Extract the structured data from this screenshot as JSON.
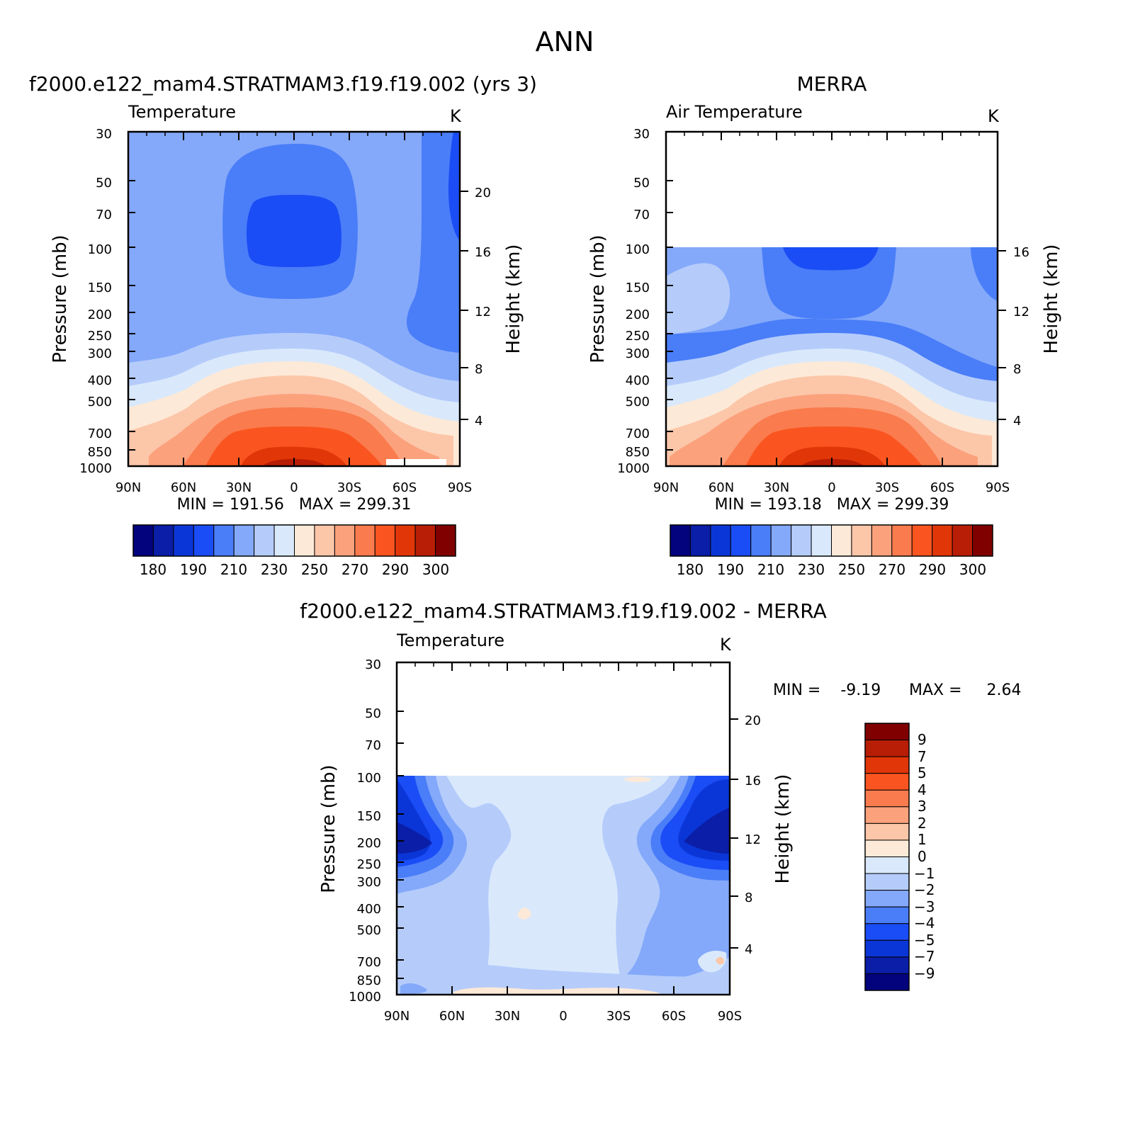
{
  "figure": {
    "title": "ANN"
  },
  "chart_data": [
    {
      "type": "heatmap",
      "title": "f2000.e122_mam4.STRATMAM3.f19.f19.002 (yrs 3)",
      "subtitle": "Temperature",
      "units": "K",
      "ylabel": "Pressure (mb)",
      "ylabel_right": "Height (km)",
      "x_ticks": [
        "90N",
        "60N",
        "30N",
        "0",
        "30S",
        "60S",
        "90S"
      ],
      "y_ticks": [
        "30",
        "50",
        "70",
        "100",
        "150",
        "200",
        "250",
        "300",
        "400",
        "500",
        "700",
        "850",
        "1000"
      ],
      "y_right_ticks": [
        "20",
        "16",
        "12",
        "8",
        "4"
      ],
      "xlim": [
        90,
        -90
      ],
      "ylim": [
        1000,
        30
      ],
      "y_scale": "log",
      "stats": "MIN = 191.56   MAX = 299.31",
      "colorbar_labels": [
        "180",
        "190",
        "210",
        "230",
        "250",
        "270",
        "290",
        "300"
      ],
      "levels": [
        175,
        180,
        185,
        190,
        200,
        210,
        220,
        230,
        240,
        250,
        260,
        270,
        280,
        290,
        295,
        300
      ],
      "colors": [
        "#03037d",
        "#0a1ea8",
        "#0b36d7",
        "#1a4df5",
        "#4a7df8",
        "#84a9fa",
        "#b5ccfb",
        "#d9e9fb",
        "#fde9d7",
        "#fcc6a9",
        "#fba17c",
        "#fa7b4d",
        "#fa5520",
        "#e13608",
        "#b81e05",
        "#800000"
      ]
    },
    {
      "type": "heatmap",
      "title": "MERRA",
      "subtitle": "Air Temperature",
      "units": "K",
      "ylabel": "Pressure (mb)",
      "ylabel_right": "Height (km)",
      "x_ticks": [
        "90N",
        "60N",
        "30N",
        "0",
        "30S",
        "60S",
        "90S"
      ],
      "y_ticks": [
        "30",
        "50",
        "70",
        "100",
        "150",
        "200",
        "250",
        "300",
        "400",
        "500",
        "700",
        "850",
        "1000"
      ],
      "y_right_ticks": [
        "16",
        "12",
        "8",
        "4"
      ],
      "xlim": [
        90,
        -90
      ],
      "ylim": [
        1000,
        30
      ],
      "data_top_pressure": 100,
      "stats": "MIN = 193.18   MAX = 299.39",
      "colorbar_labels": [
        "180",
        "190",
        "210",
        "230",
        "250",
        "270",
        "290",
        "300"
      ]
    },
    {
      "type": "heatmap",
      "title": "f2000.e122_mam4.STRATMAM3.f19.f19.002 - MERRA",
      "subtitle": "Temperature",
      "units": "K",
      "ylabel": "Pressure (mb)",
      "ylabel_right": "Height (km)",
      "x_ticks": [
        "90N",
        "60N",
        "30N",
        "0",
        "30S",
        "60S",
        "90S"
      ],
      "y_ticks": [
        "30",
        "50",
        "70",
        "100",
        "150",
        "200",
        "250",
        "300",
        "400",
        "500",
        "700",
        "850",
        "1000"
      ],
      "y_right_ticks": [
        "20",
        "16",
        "12",
        "8",
        "4"
      ],
      "xlim": [
        90,
        -90
      ],
      "ylim": [
        1000,
        30
      ],
      "data_top_pressure": 100,
      "stats_min": "MIN =    -9.19",
      "stats_max": "MAX =     2.64",
      "colorbar_labels": [
        "9",
        "7",
        "5",
        "4",
        "3",
        "2",
        "1",
        "0",
        "−1",
        "−2",
        "−3",
        "−4",
        "−5",
        "−7",
        "−9"
      ],
      "colors": [
        "#800000",
        "#b81e05",
        "#e13608",
        "#fa5520",
        "#fa7b4d",
        "#fba17c",
        "#fcc6a9",
        "#fde9d7",
        "#d9e9fb",
        "#b5ccfb",
        "#84a9fa",
        "#4a7df8",
        "#1a4df5",
        "#0b36d7",
        "#0a1ea8",
        "#03037d"
      ]
    }
  ]
}
